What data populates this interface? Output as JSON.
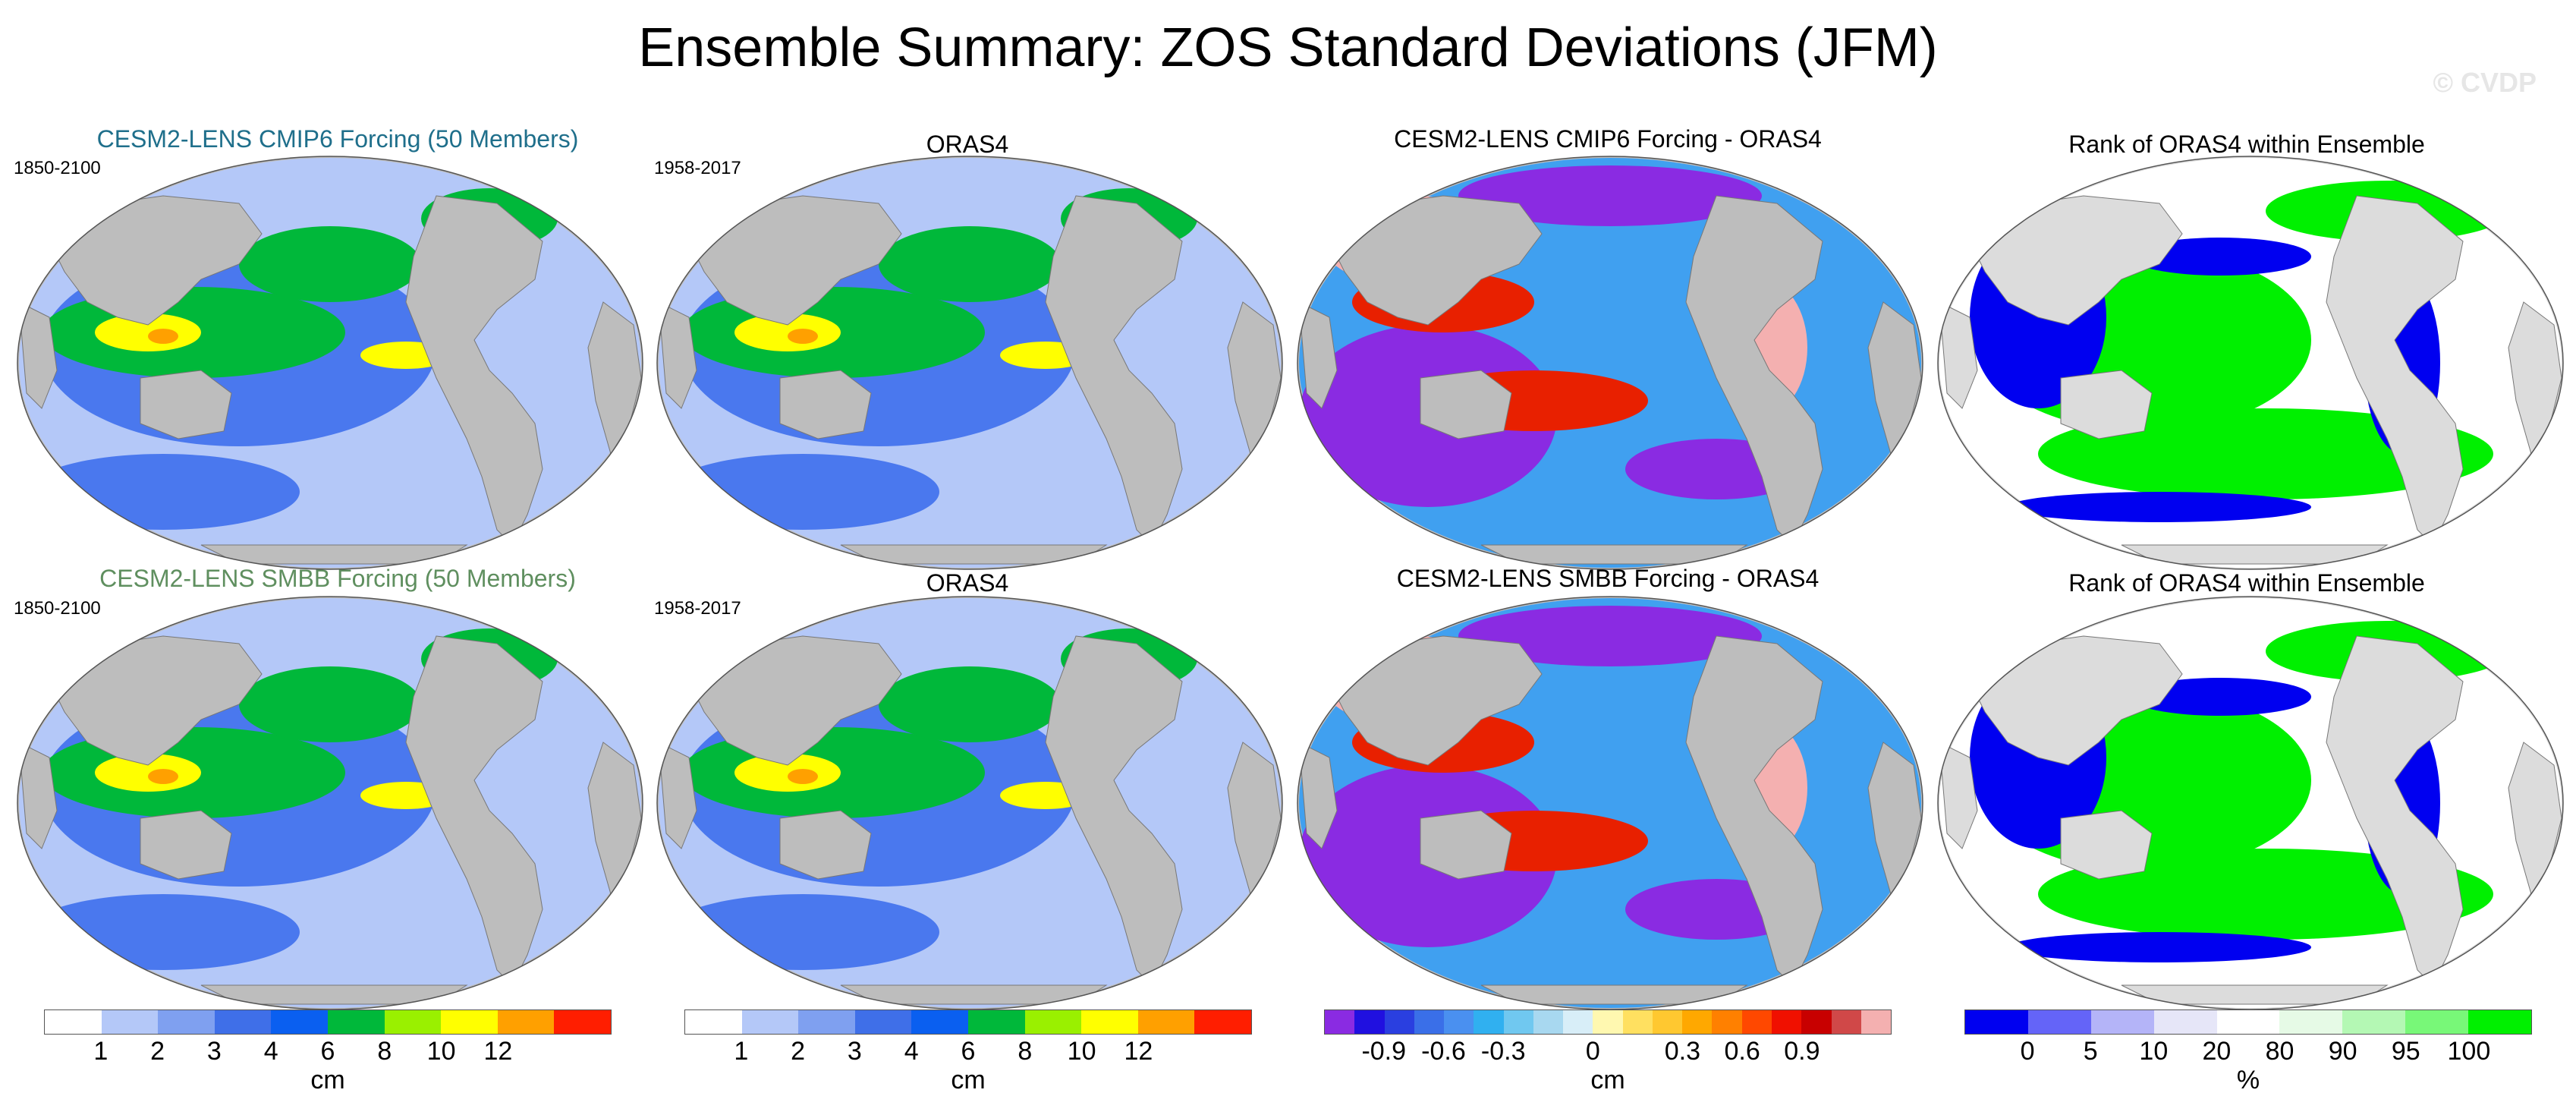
{
  "figure": {
    "title": "Ensemble Summary: ZOS Standard Deviations (JFM)",
    "watermark": "© CVDP"
  },
  "panels": [
    {
      "row": 0,
      "col": 0,
      "title": "CESM2-LENS CMIP6 Forcing (50 Members)",
      "title_color": "#1f6f8b",
      "period": "1850-2100",
      "kind": "std"
    },
    {
      "row": 0,
      "col": 1,
      "title": "ORAS4",
      "title_color": "#000000",
      "period": "1958-2017",
      "kind": "std"
    },
    {
      "row": 0,
      "col": 2,
      "title": "CESM2-LENS CMIP6 Forcing - ORAS4",
      "title_color": "#000000",
      "period": "",
      "kind": "diff"
    },
    {
      "row": 0,
      "col": 3,
      "title": "Rank of ORAS4 within Ensemble",
      "title_color": "#000000",
      "period": "",
      "kind": "rank"
    },
    {
      "row": 1,
      "col": 0,
      "title": "CESM2-LENS SMBB Forcing (50 Members)",
      "title_color": "#5f8f5f",
      "period": "1850-2100",
      "kind": "std"
    },
    {
      "row": 1,
      "col": 1,
      "title": "ORAS4",
      "title_color": "#000000",
      "period": "1958-2017",
      "kind": "std"
    },
    {
      "row": 1,
      "col": 2,
      "title": "CESM2-LENS SMBB Forcing - ORAS4",
      "title_color": "#000000",
      "period": "",
      "kind": "diff"
    },
    {
      "row": 1,
      "col": 3,
      "title": "Rank of ORAS4 within Ensemble",
      "title_color": "#000000",
      "period": "",
      "kind": "rank"
    }
  ],
  "colorbars": [
    {
      "name": "std-colorbar-1",
      "colors": [
        "#ffffff",
        "#b4c8f8",
        "#7fa0f0",
        "#3f6fe8",
        "#0a5ff0",
        "#00b83a",
        "#9af000",
        "#ffff00",
        "#ffa000",
        "#ff1e00"
      ],
      "ticks": [
        "1",
        "2",
        "3",
        "4",
        "6",
        "8",
        "10",
        "12"
      ],
      "unit": "cm"
    },
    {
      "name": "std-colorbar-2",
      "colors": [
        "#ffffff",
        "#b4c8f8",
        "#7fa0f0",
        "#3f6fe8",
        "#0a5ff0",
        "#00b83a",
        "#9af000",
        "#ffff00",
        "#ffa000",
        "#ff1e00"
      ],
      "ticks": [
        "1",
        "2",
        "3",
        "4",
        "6",
        "8",
        "10",
        "12"
      ],
      "unit": "cm"
    },
    {
      "name": "diff-colorbar",
      "colors": [
        "#8a2be2",
        "#2010e0",
        "#2a3fe0",
        "#3a6fe8",
        "#4a90f0",
        "#30b0f0",
        "#70c8f0",
        "#a8d8f0",
        "#d8eef8",
        "#fff8b0",
        "#ffe060",
        "#ffc830",
        "#ffa800",
        "#ff8000",
        "#ff4800",
        "#f01000",
        "#c80000",
        "#d04848",
        "#f4b0b0"
      ],
      "ticks": [
        "-0.9",
        "-0.6",
        "-0.3",
        "0",
        "0.3",
        "0.6",
        "0.9"
      ],
      "unit": "cm"
    },
    {
      "name": "rank-colorbar",
      "colors": [
        "#0000f0",
        "#6464f8",
        "#b4b4f8",
        "#e6e6f8",
        "#ffffff",
        "#e6fae6",
        "#b4f8b4",
        "#78f878",
        "#00f000"
      ],
      "ticks": [
        "0",
        "5",
        "10",
        "20",
        "80",
        "90",
        "95",
        "100"
      ],
      "unit": "%"
    }
  ],
  "map_colors": {
    "land": "#bdbdbd",
    "ocean_bg": "#dcdcdc",
    "std_low": "#b4c8f8",
    "std_mid": "#4a78ee",
    "std_green": "#00b83a",
    "std_yellow": "#ffff00",
    "std_orange": "#ffa000",
    "diff_purple": "#8a2be2",
    "diff_pink": "#f4b0b0",
    "diff_red": "#e82000",
    "diff_blue": "#40a0f0",
    "rank_blue": "#0000f0",
    "rank_green": "#00f000",
    "rank_white": "#ffffff"
  }
}
